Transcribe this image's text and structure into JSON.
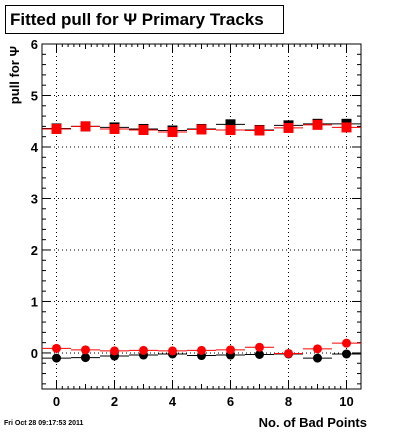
{
  "title": "Fitted pull for Ψ  Primary Tracks",
  "timestamp": "Fri Oct 28 09:17:53 2011",
  "colors": {
    "series_a": "#000000",
    "series_b": "#ff0000",
    "grid": "#000000",
    "frame": "#000000"
  },
  "chart_data": {
    "type": "scatter",
    "xlabel": "No. of Bad Points",
    "ylabel": "pull for Ψ",
    "xlim": [
      -0.5,
      10.5
    ],
    "ylim": [
      -0.7,
      6
    ],
    "xticks": [
      0,
      2,
      4,
      6,
      8,
      10
    ],
    "yticks": [
      0,
      1,
      2,
      3,
      4,
      5,
      6
    ],
    "grid": true,
    "x": [
      0,
      1,
      2,
      3,
      4,
      5,
      6,
      7,
      8,
      9,
      10
    ],
    "series": [
      {
        "marker": "square",
        "color": "#000000",
        "values": [
          4.36,
          4.4,
          4.38,
          4.35,
          4.32,
          4.35,
          4.44,
          4.33,
          4.42,
          4.45,
          4.45
        ]
      },
      {
        "marker": "square",
        "color": "#ff0000",
        "values": [
          4.35,
          4.4,
          4.35,
          4.33,
          4.29,
          4.34,
          4.33,
          4.32,
          4.37,
          4.43,
          4.38
        ]
      },
      {
        "marker": "circle",
        "color": "#000000",
        "values": [
          -0.1,
          -0.09,
          -0.06,
          -0.04,
          -0.02,
          -0.05,
          -0.04,
          -0.03,
          -0.02,
          -0.1,
          -0.02
        ]
      },
      {
        "marker": "circle",
        "color": "#ff0000",
        "values": [
          0.09,
          0.06,
          0.04,
          0.05,
          0.04,
          0.05,
          0.06,
          0.11,
          -0.01,
          0.08,
          0.19
        ]
      }
    ]
  }
}
